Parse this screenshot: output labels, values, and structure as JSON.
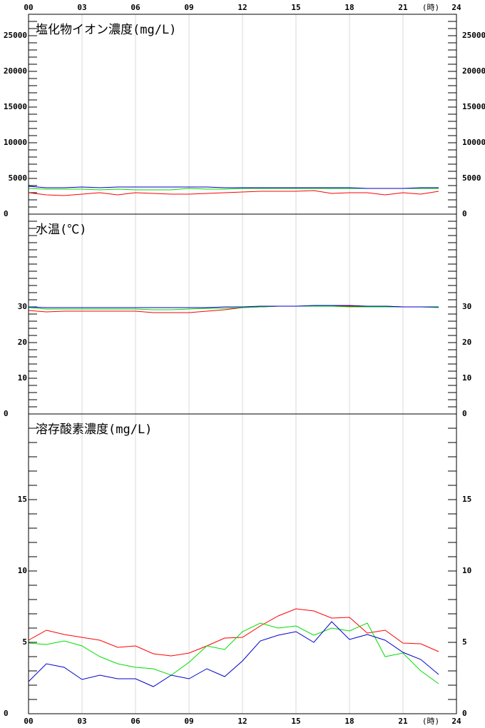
{
  "x_axis": {
    "xlim": [
      0,
      24
    ],
    "xticks": [
      {
        "value": 0,
        "label": "00"
      },
      {
        "value": 3,
        "label": "03"
      },
      {
        "value": 6,
        "label": "06"
      },
      {
        "value": 9,
        "label": "09"
      },
      12,
      15,
      18,
      21,
      24
    ],
    "unit_label": "(時)",
    "grid": true
  },
  "chart_data": [
    {
      "type": "line",
      "title": "塩化物イオン濃度(mg/L)",
      "x": [
        0,
        1,
        2,
        3,
        4,
        5,
        6,
        7,
        8,
        9,
        10,
        11,
        12,
        13,
        14,
        15,
        16,
        17,
        18,
        19,
        20,
        21,
        22,
        23
      ],
      "ylim": [
        0,
        28000
      ],
      "yticks": [
        0,
        5000,
        10000,
        15000,
        20000,
        25000
      ],
      "minor_ytick_step": 1000,
      "series": [
        {
          "color": "#ff0000",
          "values": [
            3000,
            2700,
            2600,
            2800,
            3000,
            2700,
            3000,
            2900,
            2800,
            2800,
            2900,
            3000,
            3100,
            3200,
            3200,
            3200,
            3300,
            2900,
            3000,
            3000,
            2700,
            3000,
            2800,
            3200
          ]
        },
        {
          "color": "#00dd00",
          "values": [
            3600,
            3500,
            3500,
            3500,
            3400,
            3500,
            3400,
            3400,
            3400,
            3600,
            3500,
            3500,
            3600,
            3600,
            3600,
            3600,
            3600,
            3600,
            3600,
            3600,
            3600,
            3600,
            3600,
            3600
          ]
        },
        {
          "color": "#0000cc",
          "values": [
            3900,
            3700,
            3700,
            3800,
            3700,
            3800,
            3800,
            3800,
            3800,
            3800,
            3800,
            3700,
            3700,
            3700,
            3700,
            3700,
            3700,
            3700,
            3700,
            3600,
            3600,
            3600,
            3700,
            3700
          ]
        }
      ]
    },
    {
      "type": "line",
      "title": "水温(℃)",
      "x": [
        0,
        1,
        2,
        3,
        4,
        5,
        6,
        7,
        8,
        9,
        10,
        11,
        12,
        13,
        14,
        15,
        16,
        17,
        18,
        19,
        20,
        21,
        22,
        23
      ],
      "ylim": [
        0,
        56
      ],
      "yticks": [
        0,
        10,
        20,
        30
      ],
      "minor_ytick_step": 2,
      "series": [
        {
          "color": "#ff0000",
          "values": [
            29,
            28.6,
            28.8,
            28.8,
            28.8,
            28.8,
            28.8,
            28.4,
            28.4,
            28.4,
            28.8,
            29.2,
            29.8,
            30,
            30.2,
            30.2,
            30.2,
            30.2,
            30.2,
            30.2,
            30.2,
            30,
            30,
            30
          ]
        },
        {
          "color": "#00dd00",
          "values": [
            29.8,
            29.4,
            29.4,
            29.4,
            29.4,
            29.4,
            29.4,
            29.2,
            29.2,
            29.4,
            29.6,
            29.6,
            29.8,
            30,
            30.2,
            30.2,
            30.2,
            30.2,
            30,
            30,
            30,
            30,
            30,
            29.8
          ]
        },
        {
          "color": "#0000cc",
          "values": [
            30,
            29.8,
            29.8,
            29.8,
            29.8,
            29.8,
            29.8,
            29.8,
            29.8,
            29.8,
            29.8,
            30,
            30,
            30.2,
            30.2,
            30.2,
            30.4,
            30.4,
            30.4,
            30.2,
            30.2,
            30,
            30,
            30
          ]
        }
      ]
    },
    {
      "type": "line",
      "title": "溶存酸素濃度(mg/L)",
      "x": [
        0,
        1,
        2,
        3,
        4,
        5,
        6,
        7,
        8,
        9,
        10,
        11,
        12,
        13,
        14,
        15,
        16,
        17,
        18,
        19,
        20,
        21,
        22,
        23
      ],
      "ylim": [
        0,
        21
      ],
      "yticks": [
        0,
        5,
        10,
        15
      ],
      "minor_ytick_step": 1,
      "series": [
        {
          "color": "#ff0000",
          "values": [
            5.15,
            5.85,
            5.55,
            5.35,
            5.15,
            4.65,
            4.75,
            4.2,
            4.05,
            4.25,
            4.75,
            5.3,
            5.35,
            6.15,
            6.85,
            7.35,
            7.2,
            6.7,
            6.75,
            5.65,
            5.85,
            4.95,
            4.9,
            4.35
          ]
        },
        {
          "color": "#00dd00",
          "values": [
            4.95,
            4.85,
            5.1,
            4.75,
            4,
            3.5,
            3.25,
            3.15,
            2.7,
            3.6,
            4.75,
            4.5,
            5.75,
            6.35,
            6,
            6.15,
            5.5,
            6,
            5.8,
            6.35,
            4,
            4.25,
            3,
            2.1
          ]
        },
        {
          "color": "#0000cc",
          "values": [
            2.25,
            3.5,
            3.25,
            2.4,
            2.7,
            2.45,
            2.45,
            1.9,
            2.7,
            2.45,
            3.15,
            2.6,
            3.7,
            5.1,
            5.5,
            5.75,
            5,
            6.45,
            5.2,
            5.55,
            5.15,
            4.3,
            3.8,
            2.75
          ]
        }
      ]
    }
  ]
}
